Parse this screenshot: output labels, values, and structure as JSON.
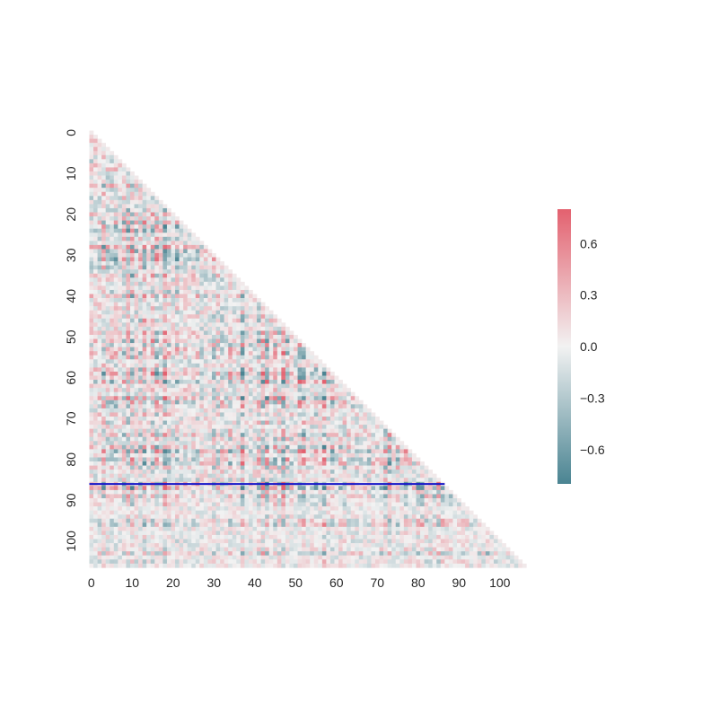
{
  "chart_data": {
    "type": "heatmap",
    "title": "",
    "xlabel": "",
    "ylabel": "",
    "mask": "upper-triangle",
    "size": 107,
    "x_ticks": [
      "0",
      "10",
      "20",
      "30",
      "40",
      "50",
      "60",
      "70",
      "80",
      "90",
      "100"
    ],
    "y_ticks": [
      "0",
      "10",
      "20",
      "30",
      "40",
      "50",
      "60",
      "70",
      "80",
      "90",
      "100"
    ],
    "tick_values": [
      0,
      10,
      20,
      30,
      40,
      50,
      60,
      70,
      80,
      90,
      100
    ],
    "colorbar": {
      "vmin": -0.8,
      "vmax": 0.8,
      "ticks": [
        0.6,
        0.3,
        0.0,
        -0.3,
        -0.6
      ],
      "tick_labels": [
        "0.6",
        "0.3",
        "0.0",
        "−0.3",
        "−0.6"
      ],
      "low_color": "#4a8492",
      "mid_color": "#f2f2f2",
      "high_color": "#e3616f"
    },
    "annotation": {
      "type": "hline",
      "row": 86,
      "x_end": 86,
      "color": "#1515c8"
    }
  }
}
